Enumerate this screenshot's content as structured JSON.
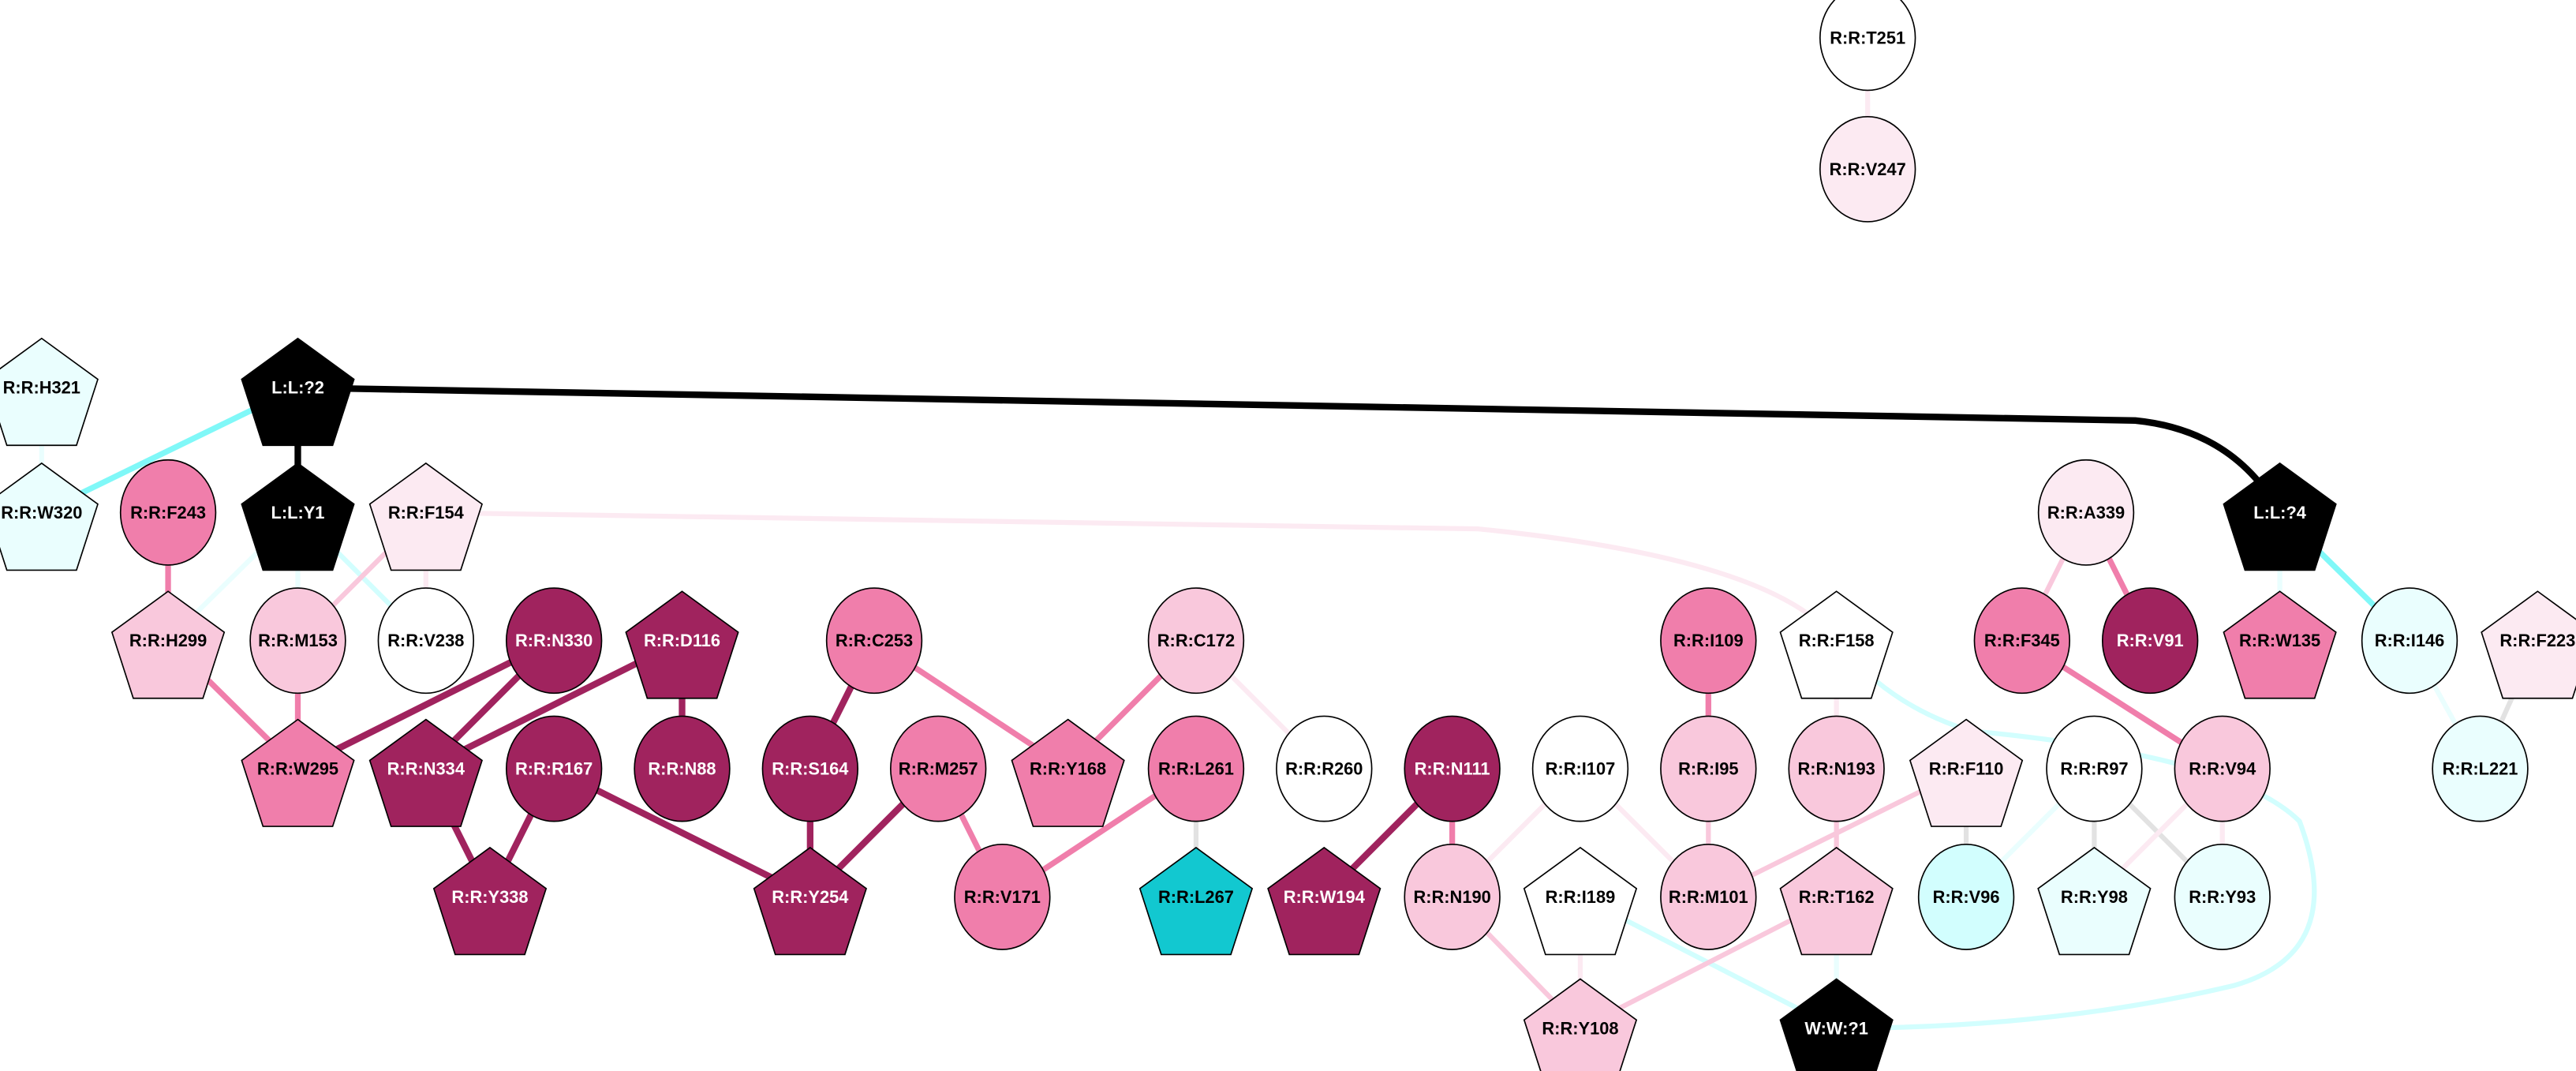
{
  "colors": {
    "dark": "#A0235E",
    "mid": "#F07EAB",
    "light": "#F9C8DC",
    "pale": "#FCEAF2",
    "white": "#FFFFFF",
    "black": "#000000",
    "cyan_pale": "#EAFEFE",
    "cyan_light": "#D2FEFE",
    "cyan": "#80F8F8",
    "teal": "#12C8D0",
    "gray": "#E2E2E2"
  },
  "nodes": [
    {
      "id": "T251",
      "label": "R:R:T251",
      "shape": "circle",
      "fill": "#FFFFFF"
    },
    {
      "id": "V247",
      "label": "R:R:V247",
      "shape": "circle",
      "fill": "#FCEAF2"
    },
    {
      "id": "H321",
      "label": "R:R:H321",
      "shape": "pentagon",
      "fill": "#EAFEFE"
    },
    {
      "id": "L2",
      "label": "L:L:?2",
      "shape": "pentagon",
      "fill": "#000000"
    },
    {
      "id": "W320",
      "label": "R:R:W320",
      "shape": "pentagon",
      "fill": "#EAFEFE"
    },
    {
      "id": "F243",
      "label": "R:R:F243",
      "shape": "circle",
      "fill": "#F07EAB"
    },
    {
      "id": "Y1",
      "label": "L:L:Y1",
      "shape": "pentagon",
      "fill": "#000000"
    },
    {
      "id": "F154",
      "label": "R:R:F154",
      "shape": "pentagon",
      "fill": "#FCEAF2"
    },
    {
      "id": "A339",
      "label": "R:R:A339",
      "shape": "circle",
      "fill": "#FCEAF2"
    },
    {
      "id": "L4",
      "label": "L:L:?4",
      "shape": "pentagon",
      "fill": "#000000"
    },
    {
      "id": "H299",
      "label": "R:R:H299",
      "shape": "pentagon",
      "fill": "#F9C8DC"
    },
    {
      "id": "M153",
      "label": "R:R:M153",
      "shape": "circle",
      "fill": "#F9C8DC"
    },
    {
      "id": "V238",
      "label": "R:R:V238",
      "shape": "circle",
      "fill": "#FFFFFF"
    },
    {
      "id": "N330",
      "label": "R:R:N330",
      "shape": "circle",
      "fill": "#A0235E"
    },
    {
      "id": "D116",
      "label": "R:R:D116",
      "shape": "pentagon",
      "fill": "#A0235E"
    },
    {
      "id": "C253",
      "label": "R:R:C253",
      "shape": "circle",
      "fill": "#F07EAB"
    },
    {
      "id": "C172",
      "label": "R:R:C172",
      "shape": "circle",
      "fill": "#F9C8DC"
    },
    {
      "id": "I109",
      "label": "R:R:I109",
      "shape": "circle",
      "fill": "#F07EAB"
    },
    {
      "id": "F158",
      "label": "R:R:F158",
      "shape": "pentagon",
      "fill": "#FFFFFF"
    },
    {
      "id": "F345",
      "label": "R:R:F345",
      "shape": "circle",
      "fill": "#F07EAB"
    },
    {
      "id": "V91",
      "label": "R:R:V91",
      "shape": "circle",
      "fill": "#A0235E"
    },
    {
      "id": "W135",
      "label": "R:R:W135",
      "shape": "pentagon",
      "fill": "#F07EAB"
    },
    {
      "id": "I146",
      "label": "R:R:I146",
      "shape": "circle",
      "fill": "#EAFEFE"
    },
    {
      "id": "F223",
      "label": "R:R:F223",
      "shape": "pentagon",
      "fill": "#FCEAF2"
    },
    {
      "id": "W295",
      "label": "R:R:W295",
      "shape": "pentagon",
      "fill": "#F07EAB"
    },
    {
      "id": "N334",
      "label": "R:R:N334",
      "shape": "pentagon",
      "fill": "#A0235E"
    },
    {
      "id": "R167",
      "label": "R:R:R167",
      "shape": "circle",
      "fill": "#A0235E"
    },
    {
      "id": "N88",
      "label": "R:R:N88",
      "shape": "circle",
      "fill": "#A0235E"
    },
    {
      "id": "S164",
      "label": "R:R:S164",
      "shape": "circle",
      "fill": "#A0235E"
    },
    {
      "id": "M257",
      "label": "R:R:M257",
      "shape": "circle",
      "fill": "#F07EAB"
    },
    {
      "id": "Y168",
      "label": "R:R:Y168",
      "shape": "pentagon",
      "fill": "#F07EAB"
    },
    {
      "id": "L261",
      "label": "R:R:L261",
      "shape": "circle",
      "fill": "#F07EAB"
    },
    {
      "id": "R260",
      "label": "R:R:R260",
      "shape": "circle",
      "fill": "#FFFFFF"
    },
    {
      "id": "N111",
      "label": "R:R:N111",
      "shape": "circle",
      "fill": "#A0235E"
    },
    {
      "id": "I107",
      "label": "R:R:I107",
      "shape": "circle",
      "fill": "#FFFFFF"
    },
    {
      "id": "I95",
      "label": "R:R:I95",
      "shape": "circle",
      "fill": "#F9C8DC"
    },
    {
      "id": "N193",
      "label": "R:R:N193",
      "shape": "circle",
      "fill": "#F9C8DC"
    },
    {
      "id": "F110",
      "label": "R:R:F110",
      "shape": "pentagon",
      "fill": "#FCEAF2"
    },
    {
      "id": "R97",
      "label": "R:R:R97",
      "shape": "circle",
      "fill": "#FFFFFF"
    },
    {
      "id": "V94",
      "label": "R:R:V94",
      "shape": "circle",
      "fill": "#F9C8DC"
    },
    {
      "id": "L221",
      "label": "R:R:L221",
      "shape": "circle",
      "fill": "#EAFEFE"
    },
    {
      "id": "Y338",
      "label": "R:R:Y338",
      "shape": "pentagon",
      "fill": "#A0235E"
    },
    {
      "id": "Y254",
      "label": "R:R:Y254",
      "shape": "pentagon",
      "fill": "#A0235E"
    },
    {
      "id": "V171",
      "label": "R:R:V171",
      "shape": "circle",
      "fill": "#F07EAB"
    },
    {
      "id": "L267",
      "label": "R:R:L267",
      "shape": "pentagon",
      "fill": "#12C8D0"
    },
    {
      "id": "W194",
      "label": "R:R:W194",
      "shape": "pentagon",
      "fill": "#A0235E"
    },
    {
      "id": "N190",
      "label": "R:R:N190",
      "shape": "circle",
      "fill": "#F9C8DC"
    },
    {
      "id": "I189",
      "label": "R:R:I189",
      "shape": "pentagon",
      "fill": "#FFFFFF"
    },
    {
      "id": "M101",
      "label": "R:R:M101",
      "shape": "circle",
      "fill": "#F9C8DC"
    },
    {
      "id": "T162",
      "label": "R:R:T162",
      "shape": "pentagon",
      "fill": "#F9C8DC"
    },
    {
      "id": "V96",
      "label": "R:R:V96",
      "shape": "circle",
      "fill": "#D2FEFE"
    },
    {
      "id": "Y98",
      "label": "R:R:Y98",
      "shape": "pentagon",
      "fill": "#EAFEFE"
    },
    {
      "id": "Y93",
      "label": "R:R:Y93",
      "shape": "circle",
      "fill": "#EAFEFE"
    },
    {
      "id": "Y108",
      "label": "R:R:Y108",
      "shape": "pentagon",
      "fill": "#F9C8DC"
    },
    {
      "id": "W1",
      "label": "W:W:?1",
      "shape": "pentagon",
      "fill": "#000000"
    }
  ],
  "edges": [
    {
      "s": "T251",
      "t": "V247",
      "color": "#FCEAF2"
    },
    {
      "s": "L2",
      "t": "L4",
      "color": "#000000"
    },
    {
      "s": "L2",
      "t": "Y1",
      "color": "#000000"
    },
    {
      "s": "L2",
      "t": "W320",
      "color": "#80F8F8"
    },
    {
      "s": "H321",
      "t": "W320",
      "color": "#EAFEFE"
    },
    {
      "s": "F243",
      "t": "H299",
      "color": "#F07EAB"
    },
    {
      "s": "Y1",
      "t": "H299",
      "color": "#EAFEFE"
    },
    {
      "s": "Y1",
      "t": "M153",
      "color": "#EAFEFE"
    },
    {
      "s": "Y1",
      "t": "V238",
      "color": "#D2FEFE"
    },
    {
      "s": "F154",
      "t": "M153",
      "color": "#F9C8DC"
    },
    {
      "s": "F154",
      "t": "V238",
      "color": "#FCEAF2"
    },
    {
      "s": "F154",
      "t": "F158",
      "color": "#FCEAF2"
    },
    {
      "s": "H299",
      "t": "W295",
      "color": "#F07EAB"
    },
    {
      "s": "M153",
      "t": "W295",
      "color": "#F07EAB"
    },
    {
      "s": "N330",
      "t": "W295",
      "color": "#A0235E"
    },
    {
      "s": "N330",
      "t": "N334",
      "color": "#A0235E"
    },
    {
      "s": "D116",
      "t": "N334",
      "color": "#A0235E"
    },
    {
      "s": "D116",
      "t": "N88",
      "color": "#A0235E"
    },
    {
      "s": "N334",
      "t": "Y338",
      "color": "#A0235E"
    },
    {
      "s": "R167",
      "t": "Y338",
      "color": "#A0235E"
    },
    {
      "s": "R167",
      "t": "Y254",
      "color": "#A0235E"
    },
    {
      "s": "C253",
      "t": "S164",
      "color": "#A0235E"
    },
    {
      "s": "C253",
      "t": "Y168",
      "color": "#F07EAB"
    },
    {
      "s": "S164",
      "t": "Y254",
      "color": "#A0235E"
    },
    {
      "s": "M257",
      "t": "Y254",
      "color": "#A0235E"
    },
    {
      "s": "M257",
      "t": "V171",
      "color": "#F07EAB"
    },
    {
      "s": "C172",
      "t": "Y168",
      "color": "#F07EAB"
    },
    {
      "s": "C172",
      "t": "R260",
      "color": "#FCEAF2"
    },
    {
      "s": "L261",
      "t": "V171",
      "color": "#F07EAB"
    },
    {
      "s": "L261",
      "t": "L267",
      "color": "#E2E2E2"
    },
    {
      "s": "N111",
      "t": "W194",
      "color": "#A0235E"
    },
    {
      "s": "N111",
      "t": "N190",
      "color": "#F07EAB"
    },
    {
      "s": "I107",
      "t": "N190",
      "color": "#FCEAF2"
    },
    {
      "s": "I107",
      "t": "M101",
      "color": "#FCEAF2"
    },
    {
      "s": "I109",
      "t": "I95",
      "color": "#F07EAB"
    },
    {
      "s": "I95",
      "t": "M101",
      "color": "#F9C8DC"
    },
    {
      "s": "F158",
      "t": "N193",
      "color": "#FCEAF2"
    },
    {
      "s": "F158",
      "t": "W1",
      "color": "#D2FEFE"
    },
    {
      "s": "N193",
      "t": "T162",
      "color": "#F9C8DC"
    },
    {
      "s": "F110",
      "t": "M101",
      "color": "#F9C8DC"
    },
    {
      "s": "F110",
      "t": "V96",
      "color": "#E2E2E2"
    },
    {
      "s": "R97",
      "t": "V96",
      "color": "#EAFEFE"
    },
    {
      "s": "R97",
      "t": "Y98",
      "color": "#E2E2E2"
    },
    {
      "s": "R97",
      "t": "Y93",
      "color": "#E2E2E2"
    },
    {
      "s": "V94",
      "t": "Y98",
      "color": "#FCEAF2"
    },
    {
      "s": "V94",
      "t": "Y93",
      "color": "#FCEAF2"
    },
    {
      "s": "A339",
      "t": "F345",
      "color": "#F9C8DC"
    },
    {
      "s": "A339",
      "t": "V91",
      "color": "#F07EAB"
    },
    {
      "s": "F345",
      "t": "V94",
      "color": "#F07EAB"
    },
    {
      "s": "L4",
      "t": "W135",
      "color": "#EAFEFE"
    },
    {
      "s": "L4",
      "t": "I146",
      "color": "#80F8F8"
    },
    {
      "s": "I146",
      "t": "L221",
      "color": "#EAFEFE"
    },
    {
      "s": "F223",
      "t": "L221",
      "color": "#E2E2E2"
    },
    {
      "s": "N190",
      "t": "Y108",
      "color": "#F9C8DC"
    },
    {
      "s": "I189",
      "t": "Y108",
      "color": "#FCEAF2"
    },
    {
      "s": "I189",
      "t": "W1",
      "color": "#D2FEFE"
    },
    {
      "s": "T162",
      "t": "Y108",
      "color": "#F9C8DC"
    },
    {
      "s": "T162",
      "t": "W1",
      "color": "#EAFEFE"
    }
  ]
}
